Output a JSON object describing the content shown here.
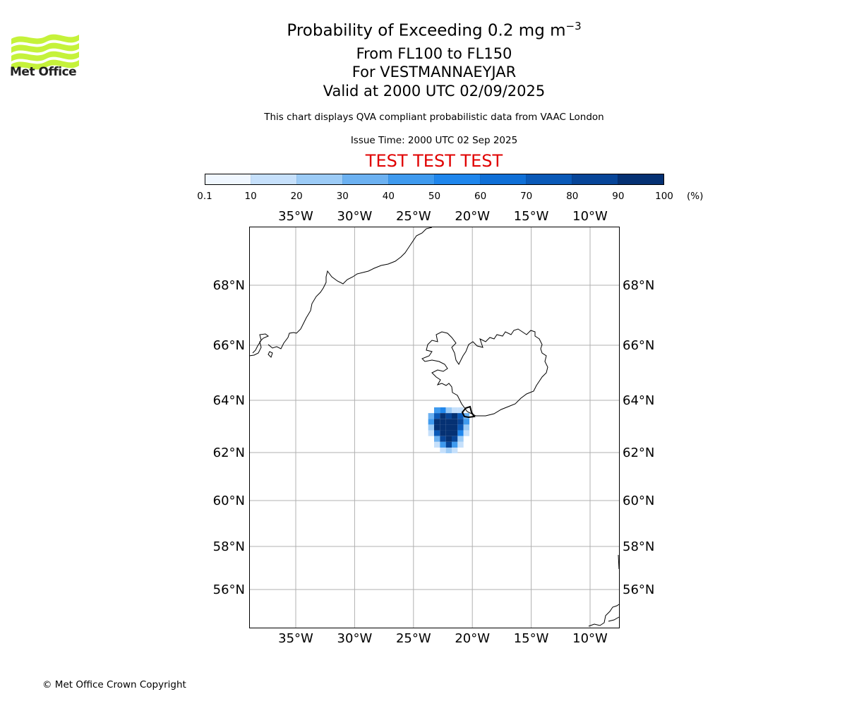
{
  "header": {
    "title_main": "Probability of Exceeding 0.2 mg m",
    "title_sup": "−3",
    "title_line2": "From FL100 to FL150",
    "title_line3": "For VESTMANNAEYJAR",
    "title_line4": "Valid at 2000 UTC 02/09/2025",
    "subtitle": "This chart displays QVA compliant probabilistic data from VAAC London",
    "issue_time": "Issue Time: 2000 UTC 02 Sep 2025",
    "test_banner": "TEST TEST TEST"
  },
  "logo": {
    "text": "Met Office",
    "color": "#c5f23a"
  },
  "footer": {
    "copyright": "© Met Office Crown Copyright"
  },
  "colorbar": {
    "ticks": [
      "0.1",
      "10",
      "20",
      "30",
      "40",
      "50",
      "60",
      "70",
      "80",
      "90",
      "100"
    ],
    "unit": "(%)",
    "colors": [
      "#f0f7ff",
      "#c6e0fb",
      "#9ccbf6",
      "#6cb1f1",
      "#3f9aee",
      "#1f86ec",
      "#0f6fd6",
      "#0a59b7",
      "#074598",
      "#053173"
    ]
  },
  "map": {
    "lon_labels": [
      "35°W",
      "30°W",
      "25°W",
      "20°W",
      "15°W",
      "10°W"
    ],
    "lon_values": [
      -35,
      -30,
      -25,
      -20,
      -15,
      -10
    ],
    "lat_labels": [
      "68°N",
      "66°N",
      "64°N",
      "62°N",
      "60°N",
      "58°N",
      "56°N"
    ],
    "lat_values": [
      68,
      66,
      64,
      62,
      60,
      58,
      56
    ],
    "extent": {
      "lon_min": -39,
      "lon_max": -7.5,
      "lat_min": 54.8,
      "lat_max": 70
    },
    "plume_cells": [
      {
        "lon": -23.0,
        "lat": 63.62,
        "pct": 45
      },
      {
        "lon": -22.5,
        "lat": 63.62,
        "pct": 55
      },
      {
        "lon": -22.0,
        "lat": 63.62,
        "pct": 25
      },
      {
        "lon": -21.5,
        "lat": 63.62,
        "pct": 15
      },
      {
        "lon": -21.0,
        "lat": 63.62,
        "pct": 10
      },
      {
        "lon": -23.5,
        "lat": 63.4,
        "pct": 30
      },
      {
        "lon": -23.0,
        "lat": 63.4,
        "pct": 75
      },
      {
        "lon": -22.5,
        "lat": 63.4,
        "pct": 95
      },
      {
        "lon": -22.0,
        "lat": 63.4,
        "pct": 85
      },
      {
        "lon": -21.5,
        "lat": 63.4,
        "pct": 95
      },
      {
        "lon": -21.0,
        "lat": 63.4,
        "pct": 75
      },
      {
        "lon": -20.5,
        "lat": 63.4,
        "pct": 35
      },
      {
        "lon": -23.5,
        "lat": 63.18,
        "pct": 45
      },
      {
        "lon": -23.0,
        "lat": 63.18,
        "pct": 95
      },
      {
        "lon": -22.5,
        "lat": 63.18,
        "pct": 95
      },
      {
        "lon": -22.0,
        "lat": 63.18,
        "pct": 95
      },
      {
        "lon": -21.5,
        "lat": 63.18,
        "pct": 95
      },
      {
        "lon": -21.0,
        "lat": 63.18,
        "pct": 85
      },
      {
        "lon": -20.5,
        "lat": 63.18,
        "pct": 45
      },
      {
        "lon": -23.5,
        "lat": 62.96,
        "pct": 25
      },
      {
        "lon": -23.0,
        "lat": 62.96,
        "pct": 95
      },
      {
        "lon": -22.5,
        "lat": 62.96,
        "pct": 95
      },
      {
        "lon": -22.0,
        "lat": 62.96,
        "pct": 95
      },
      {
        "lon": -21.5,
        "lat": 62.96,
        "pct": 95
      },
      {
        "lon": -21.0,
        "lat": 62.96,
        "pct": 75
      },
      {
        "lon": -20.5,
        "lat": 62.96,
        "pct": 25
      },
      {
        "lon": -23.5,
        "lat": 62.74,
        "pct": 15
      },
      {
        "lon": -23.0,
        "lat": 62.74,
        "pct": 75
      },
      {
        "lon": -22.5,
        "lat": 62.74,
        "pct": 95
      },
      {
        "lon": -22.0,
        "lat": 62.74,
        "pct": 95
      },
      {
        "lon": -21.5,
        "lat": 62.74,
        "pct": 95
      },
      {
        "lon": -21.0,
        "lat": 62.74,
        "pct": 55
      },
      {
        "lon": -20.5,
        "lat": 62.74,
        "pct": 15
      },
      {
        "lon": -23.0,
        "lat": 62.52,
        "pct": 35
      },
      {
        "lon": -22.5,
        "lat": 62.52,
        "pct": 85
      },
      {
        "lon": -22.0,
        "lat": 62.52,
        "pct": 95
      },
      {
        "lon": -21.5,
        "lat": 62.52,
        "pct": 85
      },
      {
        "lon": -21.0,
        "lat": 62.52,
        "pct": 25
      },
      {
        "lon": -23.0,
        "lat": 62.3,
        "pct": 10
      },
      {
        "lon": -22.5,
        "lat": 62.3,
        "pct": 45
      },
      {
        "lon": -22.0,
        "lat": 62.3,
        "pct": 85
      },
      {
        "lon": -21.5,
        "lat": 62.3,
        "pct": 45
      },
      {
        "lon": -21.0,
        "lat": 62.3,
        "pct": 10
      },
      {
        "lon": -22.5,
        "lat": 62.08,
        "pct": 15
      },
      {
        "lon": -22.0,
        "lat": 62.08,
        "pct": 25
      },
      {
        "lon": -21.5,
        "lat": 62.08,
        "pct": 10
      }
    ]
  }
}
